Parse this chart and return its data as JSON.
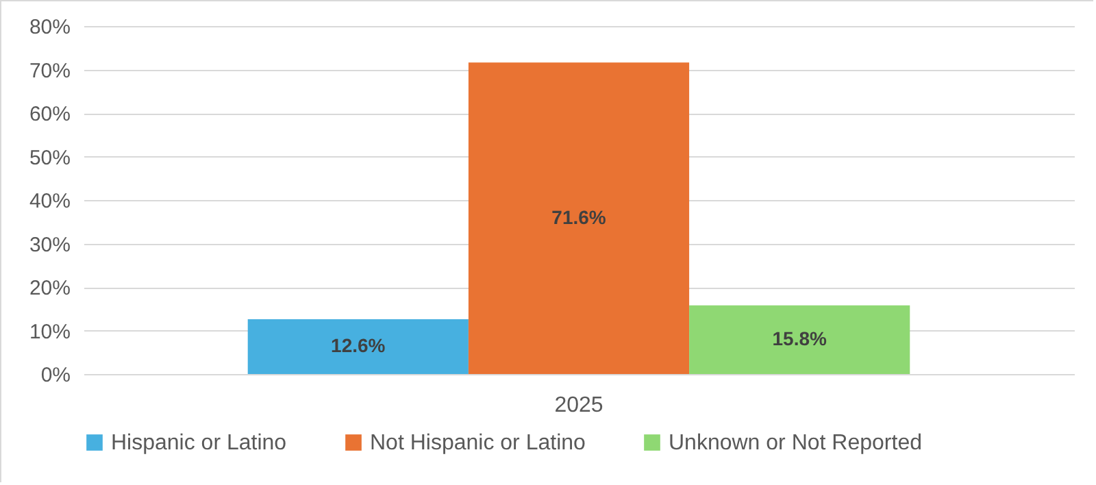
{
  "chart_data": {
    "type": "bar",
    "categories": [
      "2025"
    ],
    "series": [
      {
        "name": "Hispanic or Latino",
        "color": "#47b0e0",
        "values": [
          12.6
        ],
        "value_labels": [
          "12.6%"
        ]
      },
      {
        "name": "Not Hispanic or Latino",
        "color": "#e97333",
        "values": [
          71.6
        ],
        "value_labels": [
          "71.6%"
        ]
      },
      {
        "name": "Unknown or Not Reported",
        "color": "#8fd873",
        "values": [
          15.8
        ],
        "value_labels": [
          "15.8%"
        ]
      }
    ],
    "ylim": [
      0,
      80
    ],
    "yticks": [
      {
        "value": 0,
        "label": "0%"
      },
      {
        "value": 10,
        "label": "10%"
      },
      {
        "value": 20,
        "label": "20%"
      },
      {
        "value": 30,
        "label": "30%"
      },
      {
        "value": 40,
        "label": "40%"
      },
      {
        "value": 50,
        "label": "50%"
      },
      {
        "value": 60,
        "label": "60%"
      },
      {
        "value": 70,
        "label": "70%"
      },
      {
        "value": 80,
        "label": "80%"
      }
    ],
    "grid": "y",
    "legend": "bottom"
  }
}
